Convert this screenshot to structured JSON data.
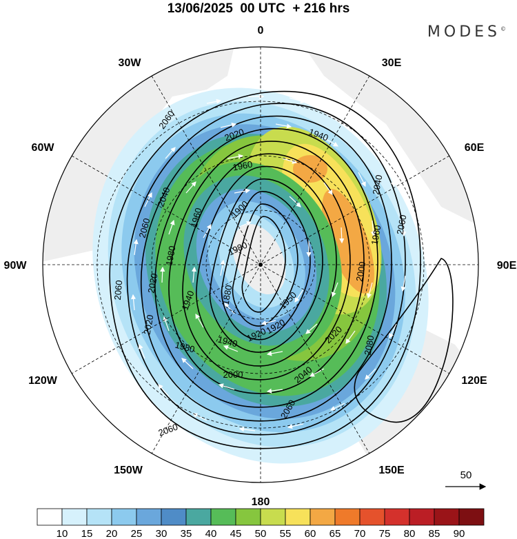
{
  "title": "13/06/2025  00 UTC  + 216 hrs",
  "brand": "MODES",
  "brand_mark": "©",
  "pole_map": {
    "longitude_labels": [
      "0",
      "30E",
      "60E",
      "90E",
      "120E",
      "150E",
      "180",
      "150W",
      "120W",
      "90W",
      "60W",
      "30W"
    ],
    "contour_labels": [
      "2060",
      "2020",
      "1960",
      "2040",
      "1900",
      "1980",
      "1960",
      "2060",
      "1960",
      "2040",
      "2000",
      "1980",
      "1940",
      "1940",
      "2020",
      "2060",
      "1880",
      "1920",
      "1950",
      "1920",
      "2020",
      "1940",
      "1980",
      "2000",
      "2040",
      "2080",
      "2060",
      "2060",
      "2060",
      "2020"
    ],
    "contour_heights": [
      1880,
      1900,
      1920,
      1940,
      1950,
      1960,
      1980,
      2000,
      2020,
      2040,
      2060,
      2080
    ]
  },
  "vector_legend": {
    "value": "50"
  },
  "colorbar": {
    "labels": [
      "10",
      "15",
      "20",
      "25",
      "30",
      "35",
      "40",
      "45",
      "50",
      "55",
      "60",
      "65",
      "70",
      "75",
      "80",
      "85",
      "90"
    ],
    "colors": [
      "#ffffff",
      "#d6f1fc",
      "#b5e3f7",
      "#8ccaee",
      "#6aa7dc",
      "#4f8cc7",
      "#4aa8a0",
      "#56bc58",
      "#86c63e",
      "#c8dc4e",
      "#f7e15a",
      "#f3a844",
      "#ef7a2a",
      "#e5522c",
      "#d4312c",
      "#bb1e25",
      "#9a1418",
      "#7d0f12"
    ]
  }
}
